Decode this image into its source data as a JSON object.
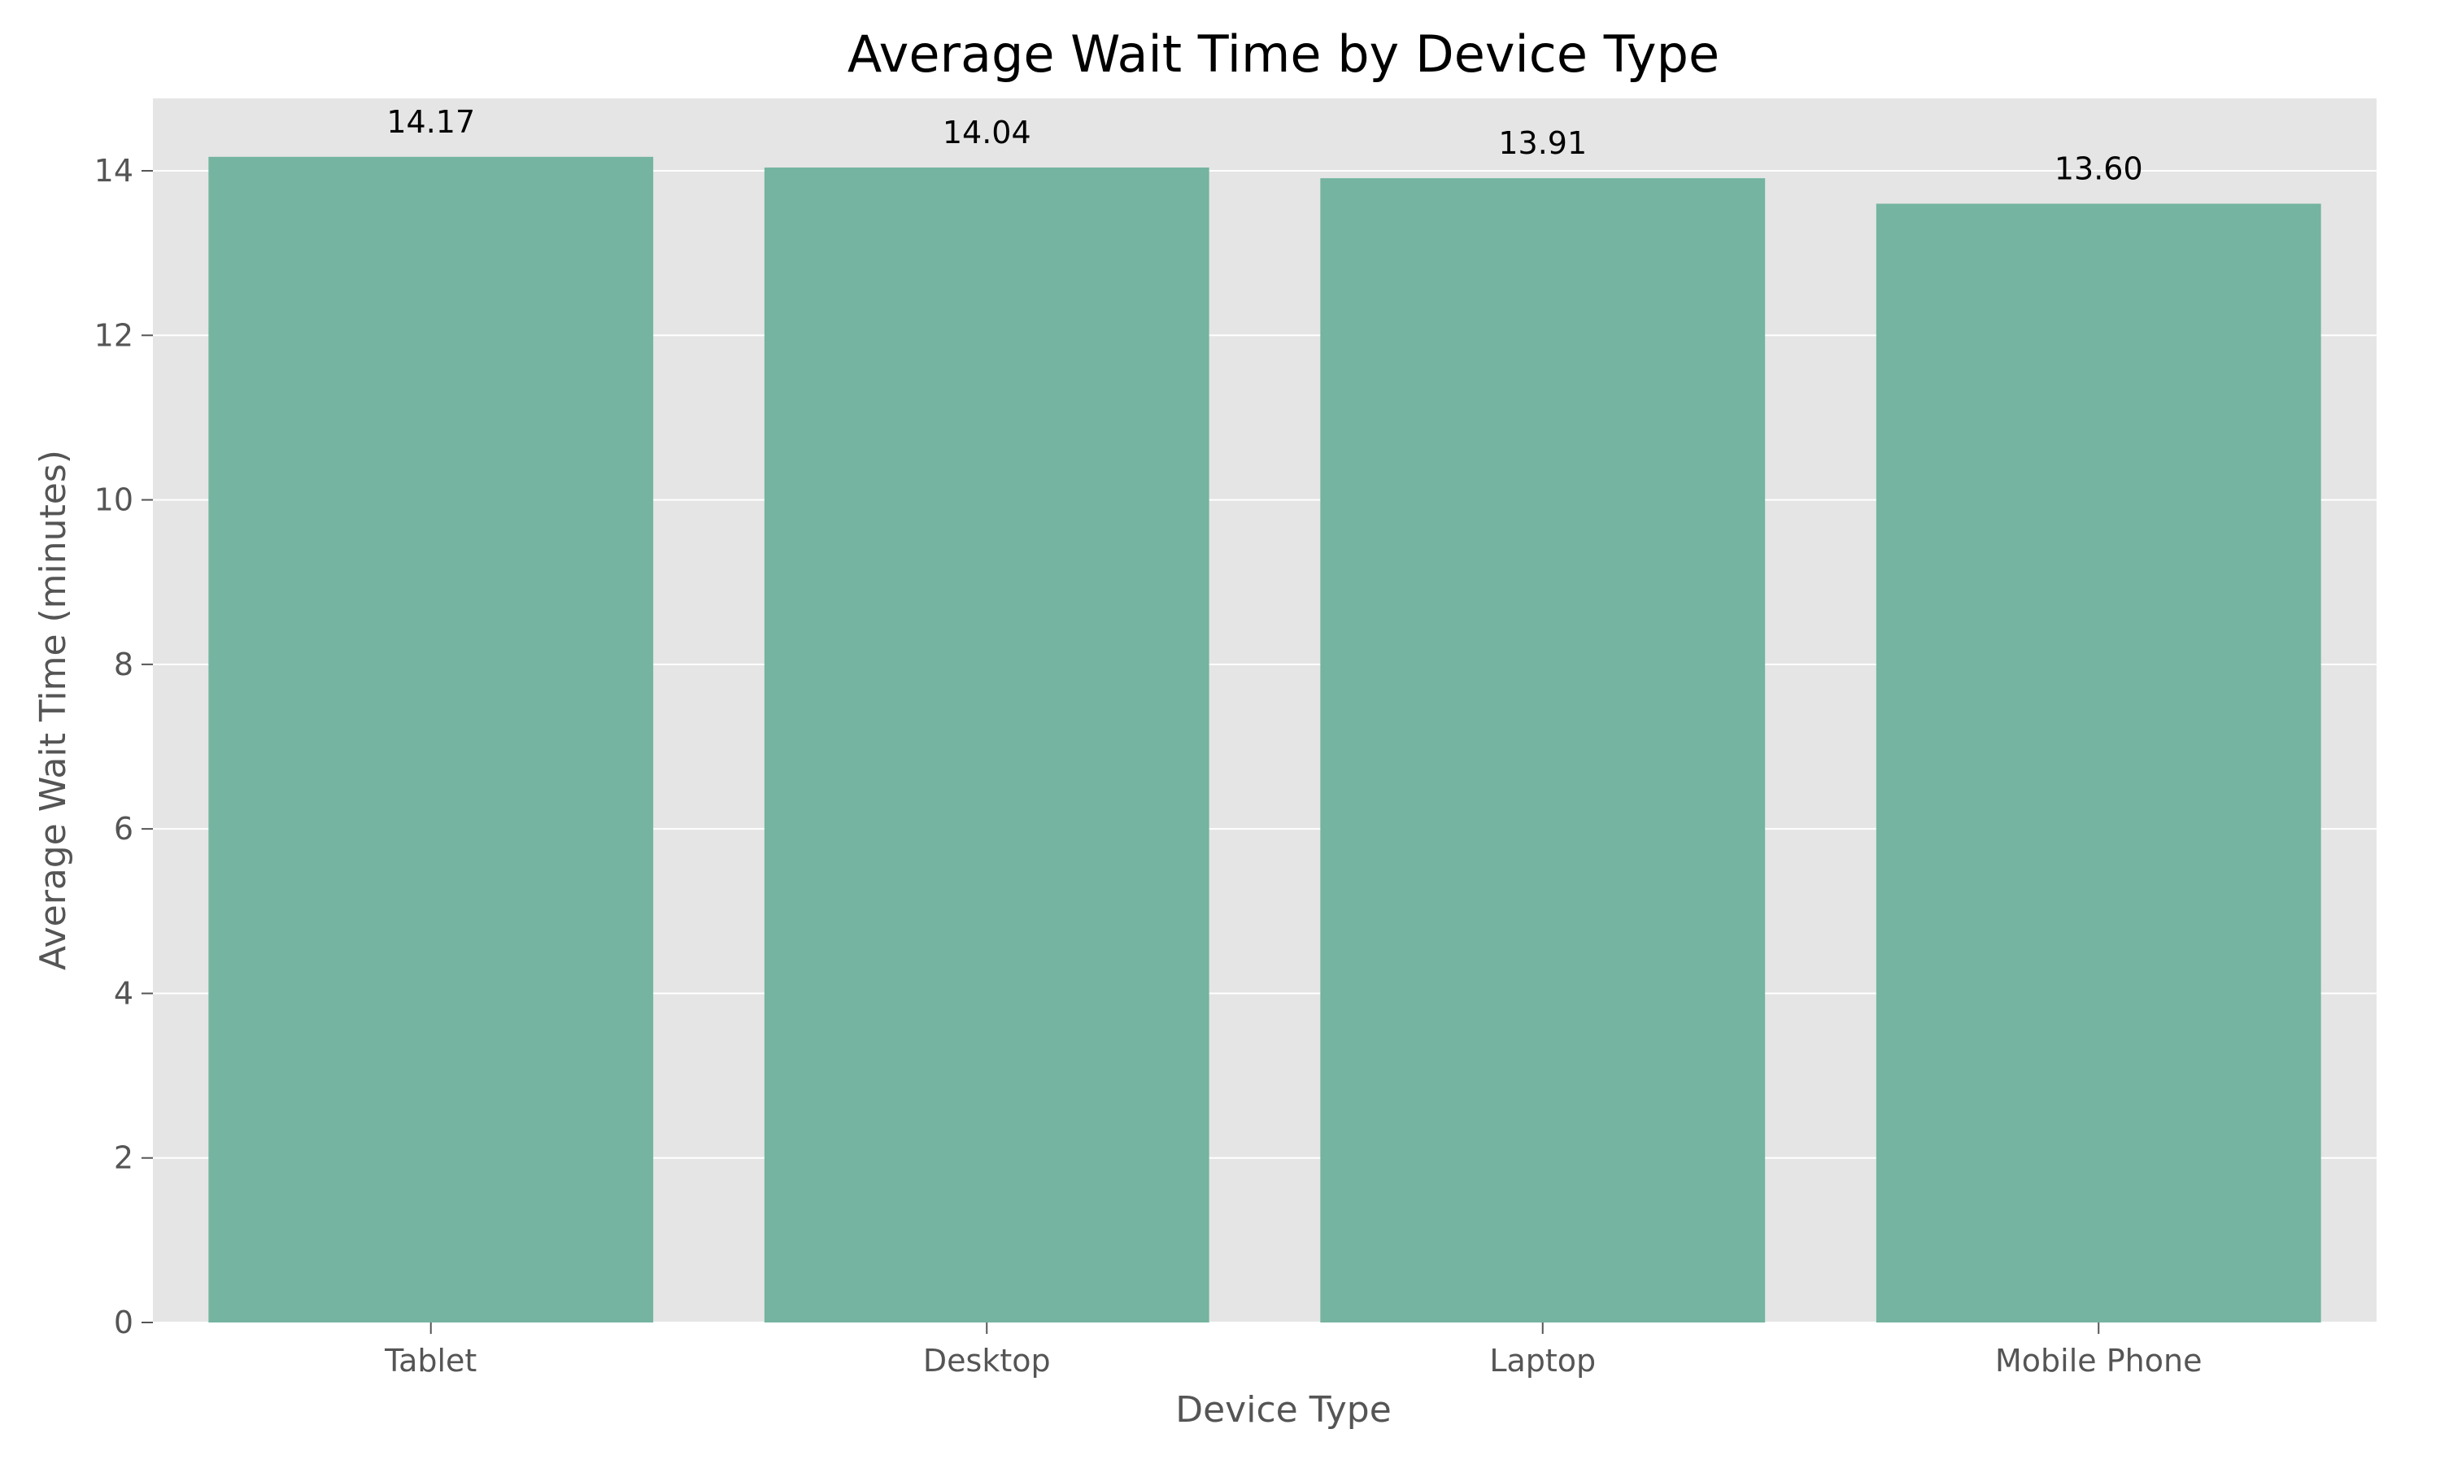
{
  "chart_data": {
    "type": "bar",
    "title": "Average Wait Time by Device Type",
    "xlabel": "Device Type",
    "ylabel": "Average Wait Time (minutes)",
    "categories": [
      "Tablet",
      "Desktop",
      "Laptop",
      "Mobile Phone"
    ],
    "values": [
      14.17,
      14.04,
      13.91,
      13.6
    ],
    "value_labels": [
      "14.17",
      "14.04",
      "13.91",
      "13.60"
    ],
    "ylim": [
      0,
      14.88
    ],
    "yticks": [
      0,
      2,
      4,
      6,
      8,
      10,
      12,
      14
    ],
    "ytick_labels": [
      "0",
      "2",
      "4",
      "6",
      "8",
      "10",
      "12",
      "14"
    ],
    "grid": true,
    "legend": "none",
    "colors": {
      "bar": "#74b4a0",
      "plot_background": "#e5e5e5",
      "grid": "#ffffff",
      "tick": "#555555"
    }
  }
}
